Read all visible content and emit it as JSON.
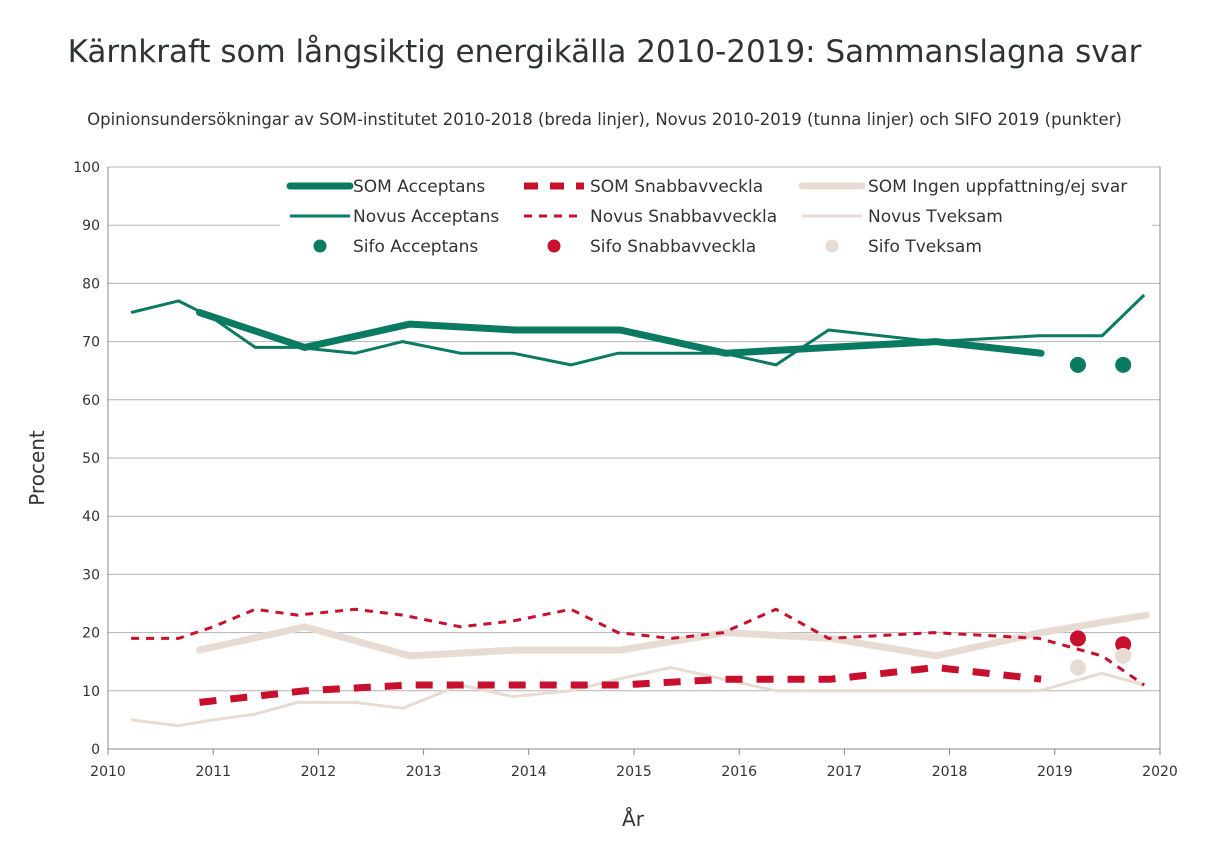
{
  "chart_data": {
    "type": "line",
    "title": "Kärnkraft som långsiktig energikälla 2010-2019: Sammanslagna svar",
    "subtitle": "Opinionsundersökningar av SOM-institutet 2010-2018 (breda linjer), Novus 2010-2019 (tunna linjer) och SIFO 2019 (punkter)",
    "xlabel": "År",
    "ylabel": "Procent",
    "xlim": [
      2010,
      2020
    ],
    "ylim": [
      0,
      100
    ],
    "x_ticks": [
      2010,
      2011,
      2012,
      2013,
      2014,
      2015,
      2016,
      2017,
      2018,
      2019,
      2020
    ],
    "y_ticks": [
      0,
      10,
      20,
      30,
      40,
      50,
      60,
      70,
      80,
      90,
      100
    ],
    "grid": "horizontal",
    "legend_position": "top-right",
    "series": [
      {
        "name": "SOM Acceptans",
        "style": "thick-solid",
        "color": "#0a7a62",
        "x": [
          2010.87,
          2011.87,
          2012.87,
          2013.87,
          2014.87,
          2015.87,
          2016.87,
          2017.87,
          2018.87
        ],
        "y": [
          75,
          69,
          73,
          72,
          72,
          68,
          69,
          70,
          68
        ]
      },
      {
        "name": "SOM Snabbavveckla",
        "style": "thick-dashed",
        "color": "#c8102e",
        "x": [
          2010.87,
          2011.87,
          2012.87,
          2013.87,
          2014.87,
          2015.87,
          2016.87,
          2017.87,
          2018.87
        ],
        "y": [
          8,
          10,
          11,
          11,
          11,
          12,
          12,
          14,
          12
        ]
      },
      {
        "name": "SOM Ingen uppfattning/ej svar",
        "style": "thick-solid",
        "color": "#e6dcd3",
        "x": [
          2010.87,
          2011.87,
          2012.87,
          2013.87,
          2014.87,
          2015.87,
          2016.87,
          2017.87,
          2018.87,
          2019.87
        ],
        "y": [
          17,
          21,
          16,
          17,
          17,
          20,
          19,
          16,
          20,
          23
        ]
      },
      {
        "name": "Novus Acceptans",
        "style": "thin-solid",
        "color": "#0a7a62",
        "x": [
          2010.22,
          2010.67,
          2011.0,
          2011.4,
          2011.8,
          2012.35,
          2012.8,
          2013.35,
          2013.85,
          2014.4,
          2014.85,
          2015.35,
          2015.85,
          2016.35,
          2016.85,
          2017.85,
          2018.85,
          2019.45,
          2019.85
        ],
        "y": [
          75,
          77,
          74,
          69,
          69,
          68,
          70,
          68,
          68,
          66,
          68,
          68,
          68,
          66,
          72,
          70,
          71,
          71,
          78
        ]
      },
      {
        "name": "Novus Snabbavveckla",
        "style": "thin-dotted",
        "color": "#c8102e",
        "x": [
          2010.22,
          2010.67,
          2011.0,
          2011.4,
          2011.8,
          2012.35,
          2012.8,
          2013.35,
          2013.85,
          2014.4,
          2014.85,
          2015.35,
          2015.85,
          2016.35,
          2016.85,
          2017.85,
          2018.85,
          2019.45,
          2019.85
        ],
        "y": [
          19,
          19,
          21,
          24,
          23,
          24,
          23,
          21,
          22,
          24,
          20,
          19,
          20,
          24,
          19,
          20,
          19,
          16,
          11
        ]
      },
      {
        "name": "Novus Tveksam",
        "style": "thin-solid",
        "color": "#e6dcd3",
        "x": [
          2010.22,
          2010.67,
          2011.0,
          2011.4,
          2011.8,
          2012.35,
          2012.8,
          2013.35,
          2013.85,
          2014.4,
          2014.85,
          2015.35,
          2015.85,
          2016.35,
          2016.85,
          2017.85,
          2018.85,
          2019.45,
          2019.85
        ],
        "y": [
          5,
          4,
          5,
          6,
          8,
          8,
          7,
          11,
          9,
          10,
          12,
          14,
          12,
          10,
          10,
          10,
          10,
          13,
          11
        ]
      },
      {
        "name": "Sifo Acceptans",
        "style": "points",
        "color": "#0a7a62",
        "x": [
          2019.22,
          2019.65
        ],
        "y": [
          66,
          66
        ]
      },
      {
        "name": "Sifo Snabbavveckla",
        "style": "points",
        "color": "#c8102e",
        "x": [
          2019.22,
          2019.65
        ],
        "y": [
          19,
          18
        ]
      },
      {
        "name": "Sifo Tveksam",
        "style": "points",
        "color": "#e6dcd3",
        "x": [
          2019.22,
          2019.65
        ],
        "y": [
          14,
          16
        ]
      }
    ]
  }
}
